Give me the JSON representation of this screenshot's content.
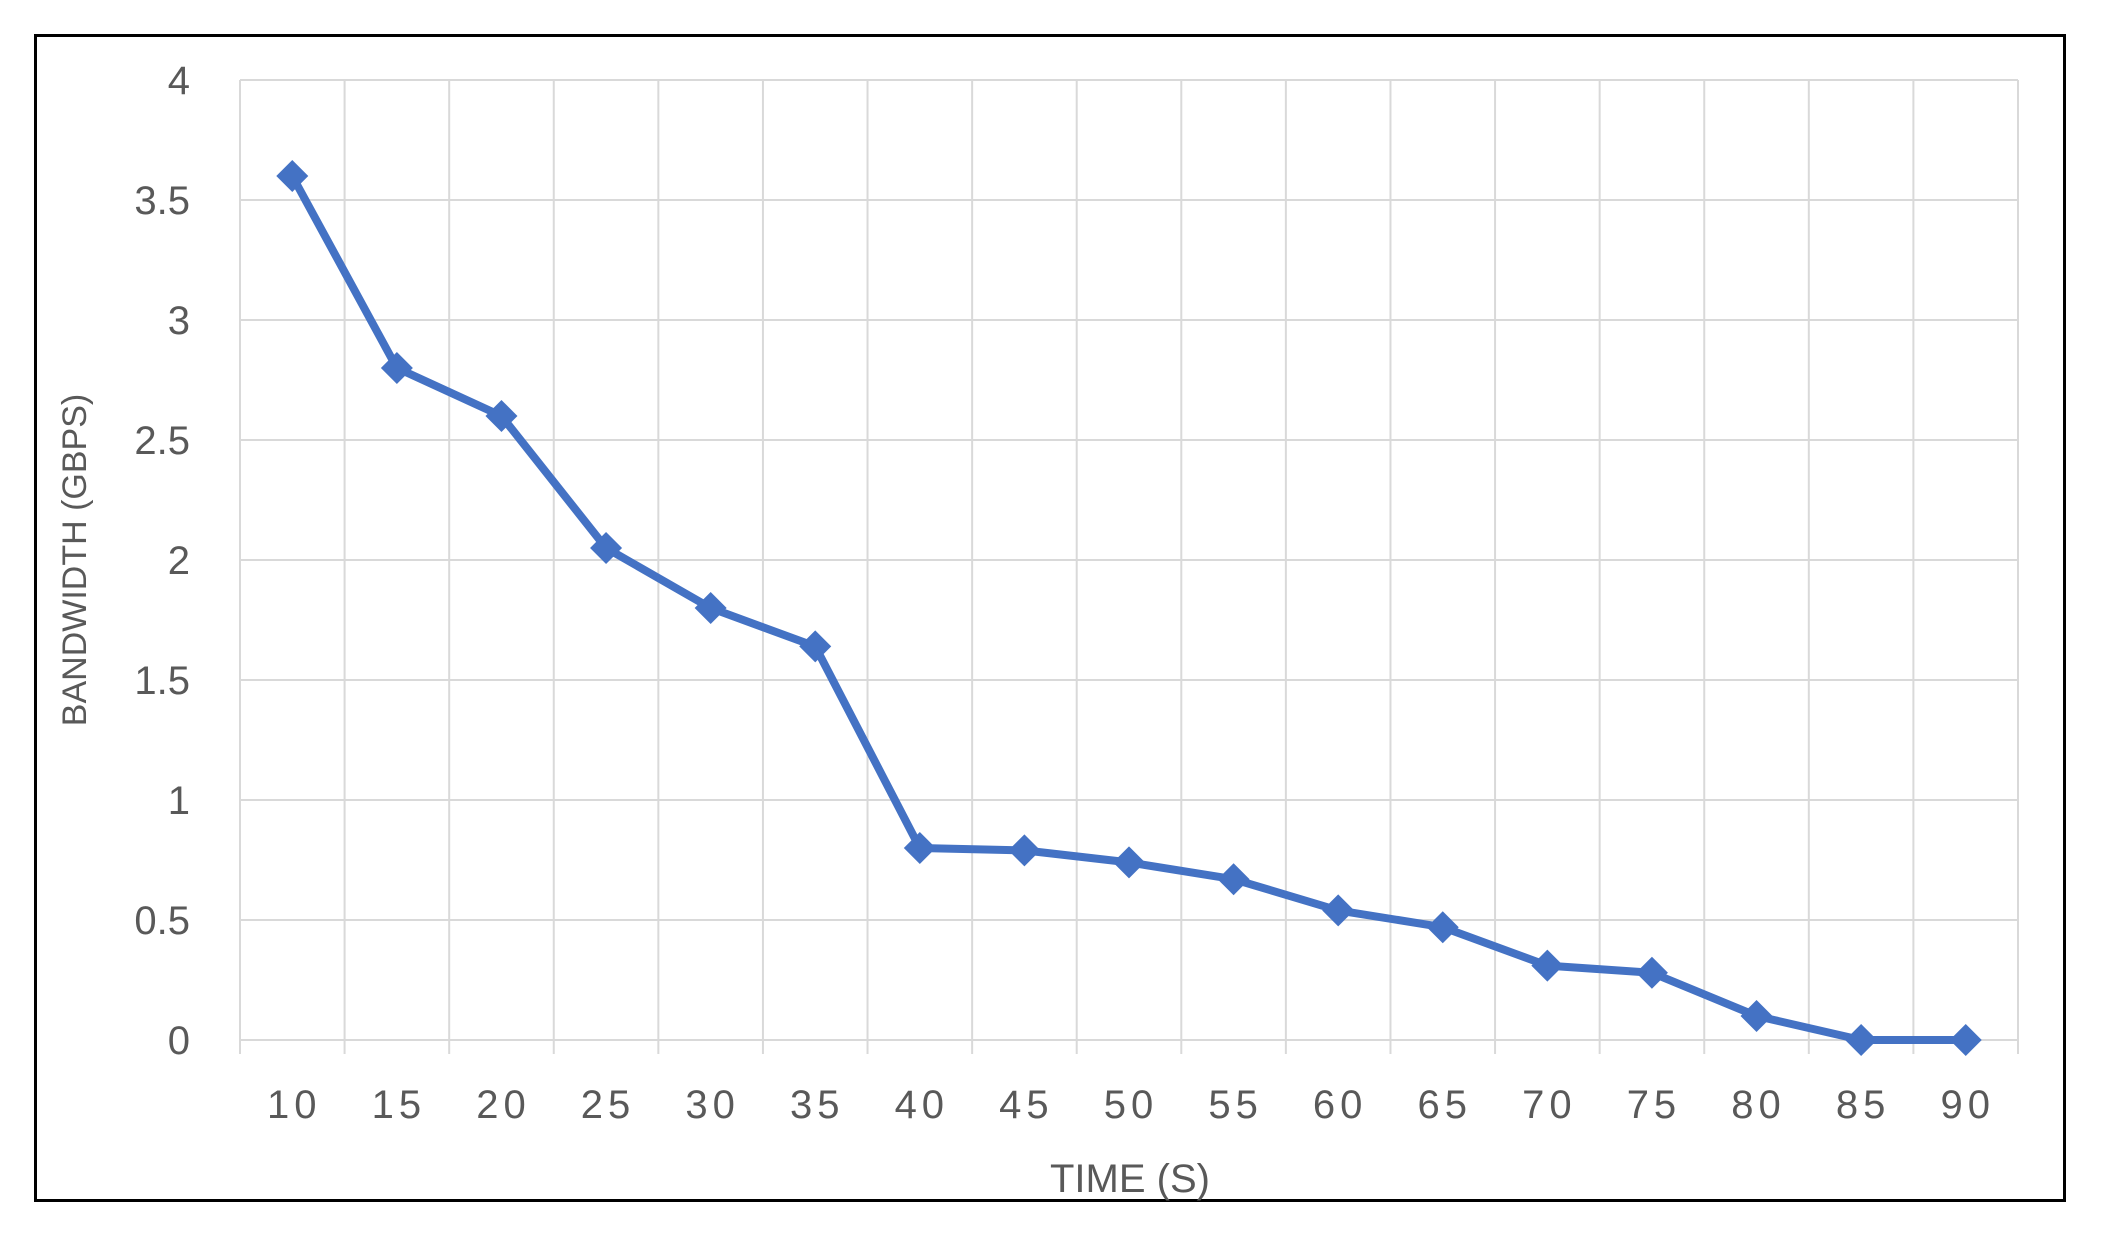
{
  "chart_data": {
    "type": "line",
    "title": "",
    "xlabel": "TIME (S)",
    "ylabel": "BANDWIDTH (GBPS)",
    "x": [
      "10",
      "15",
      "20",
      "25",
      "30",
      "35",
      "40",
      "45",
      "50",
      "55",
      "60",
      "65",
      "70",
      "75",
      "80",
      "85",
      "90"
    ],
    "yticks": [
      "0",
      "0.5",
      "1",
      "1.5",
      "2",
      "2.5",
      "3",
      "3.5",
      "4"
    ],
    "ylim": [
      0,
      4
    ],
    "grid": true,
    "legend": "none",
    "series": [
      {
        "values": [
          3.6,
          2.8,
          2.6,
          2.05,
          1.8,
          1.64,
          0.8,
          0.79,
          0.74,
          0.67,
          0.54,
          0.47,
          0.31,
          0.28,
          0.1,
          0.0,
          0.0
        ],
        "color": "#4472C4",
        "marker": "diamond"
      }
    ],
    "colors": {
      "grid": "#D9D9D9",
      "text": "#595959",
      "frame": "#000000"
    }
  }
}
